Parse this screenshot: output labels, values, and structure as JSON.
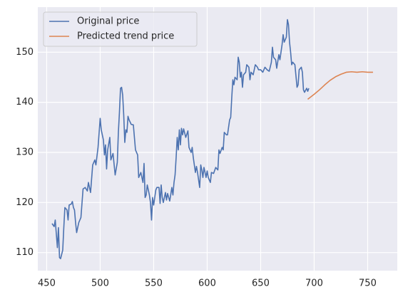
{
  "chart_data": {
    "type": "line",
    "series": [
      {
        "name": "Original price",
        "color": "#4c72b0",
        "x": [
          455,
          457,
          458,
          460,
          461,
          462,
          463,
          465,
          466,
          467,
          469,
          470,
          471,
          473,
          474,
          475,
          476,
          477,
          478,
          480,
          482,
          484,
          486,
          488,
          489,
          491,
          493,
          495,
          496,
          498,
          500,
          501,
          503,
          504,
          505,
          506,
          507,
          509,
          510,
          512,
          514,
          516,
          517,
          518,
          519,
          520,
          521,
          522,
          523,
          524,
          525,
          526,
          527,
          529,
          531,
          533,
          535,
          536,
          538,
          540,
          541,
          542,
          543,
          544,
          546,
          547,
          548,
          549,
          550,
          552,
          553,
          555,
          556,
          557,
          558,
          559,
          561,
          562,
          563,
          565,
          567,
          568,
          569,
          570,
          571,
          572,
          573,
          574,
          575,
          576,
          577,
          578,
          580,
          582,
          583,
          585,
          586,
          587,
          589,
          590,
          591,
          593,
          594,
          595,
          596,
          597,
          599,
          600,
          601,
          603,
          604,
          606,
          608,
          610,
          611,
          612,
          614,
          615,
          616,
          618,
          619,
          621,
          622,
          623,
          624,
          625,
          626,
          628,
          629,
          630,
          631,
          632,
          633,
          634,
          636,
          637,
          639,
          640,
          641,
          643,
          645,
          647,
          648,
          650,
          652,
          654,
          656,
          658,
          660,
          661,
          662,
          664,
          665,
          667,
          668,
          670,
          671,
          672,
          674,
          675,
          676,
          677,
          678,
          679,
          680,
          682,
          684,
          685,
          686,
          688,
          689,
          690,
          691,
          693,
          694,
          695
        ],
        "values": [
          115.8,
          115.2,
          116.5,
          111,
          115,
          109,
          108.8,
          110.5,
          115,
          119,
          118.5,
          116.5,
          119.5,
          119.7,
          120.2,
          119,
          118.5,
          116,
          114,
          116,
          117,
          122.7,
          123,
          122.3,
          124,
          122,
          127.5,
          128.5,
          127.5,
          131,
          136.8,
          134.5,
          132.5,
          129.5,
          131.5,
          126.7,
          130.5,
          133,
          128.5,
          129.8,
          125.5,
          128,
          134,
          138,
          142.8,
          143,
          141.5,
          137.5,
          132,
          134.5,
          134,
          137.2,
          136.5,
          135.6,
          135.5,
          130.5,
          129.5,
          125,
          126,
          124,
          127.8,
          121,
          121.5,
          123.5,
          121.5,
          120,
          116.5,
          121,
          119.5,
          122.5,
          123,
          123,
          119.8,
          123.5,
          121,
          120,
          122,
          120.5,
          121.8,
          120.3,
          123,
          121.5,
          124,
          125.5,
          129,
          133,
          130.5,
          134.5,
          131.5,
          134.8,
          133.5,
          134.7,
          133,
          134.3,
          131,
          130,
          131,
          129,
          126,
          127.2,
          126,
          123,
          127.5,
          126.5,
          125,
          127,
          125,
          126.3,
          125,
          124,
          126,
          125.8,
          127,
          126.5,
          130.5,
          129.8,
          131,
          130.5,
          134,
          133.5,
          133.5,
          136.5,
          137,
          141,
          144.5,
          143.5,
          145,
          144.5,
          149,
          148,
          145,
          146,
          143,
          145.5,
          146,
          147.5,
          147,
          144.5,
          146,
          145.5,
          147.5,
          147,
          146.5,
          146.5,
          146,
          147,
          146.5,
          146.2,
          148,
          151,
          149,
          148.5,
          146.8,
          149.5,
          148.5,
          151.5,
          153.5,
          152,
          153,
          156.5,
          155.5,
          152,
          150,
          147.5,
          148,
          147.5,
          143,
          143.5,
          146.5,
          147,
          146,
          142.5,
          142,
          142.8,
          142.2,
          142.8
        ]
      },
      {
        "name": "Predicted trend price",
        "color": "#dd8452",
        "x": [
          694,
          700,
          705,
          710,
          715,
          720,
          725,
          730,
          735,
          740,
          745,
          750,
          755
        ],
        "values": [
          140.6,
          141.6,
          142.5,
          143.5,
          144.4,
          145.1,
          145.6,
          146,
          146.1,
          146,
          146.1,
          146,
          146
        ]
      }
    ],
    "xlim": [
      441.7,
      777.7
    ],
    "xticks": [
      450,
      500,
      550,
      600,
      650,
      700,
      750
    ],
    "ylim": [
      106.4,
      159
    ],
    "yticks": [
      110,
      120,
      130,
      140,
      150
    ],
    "grid": true,
    "legend": "upper left"
  }
}
